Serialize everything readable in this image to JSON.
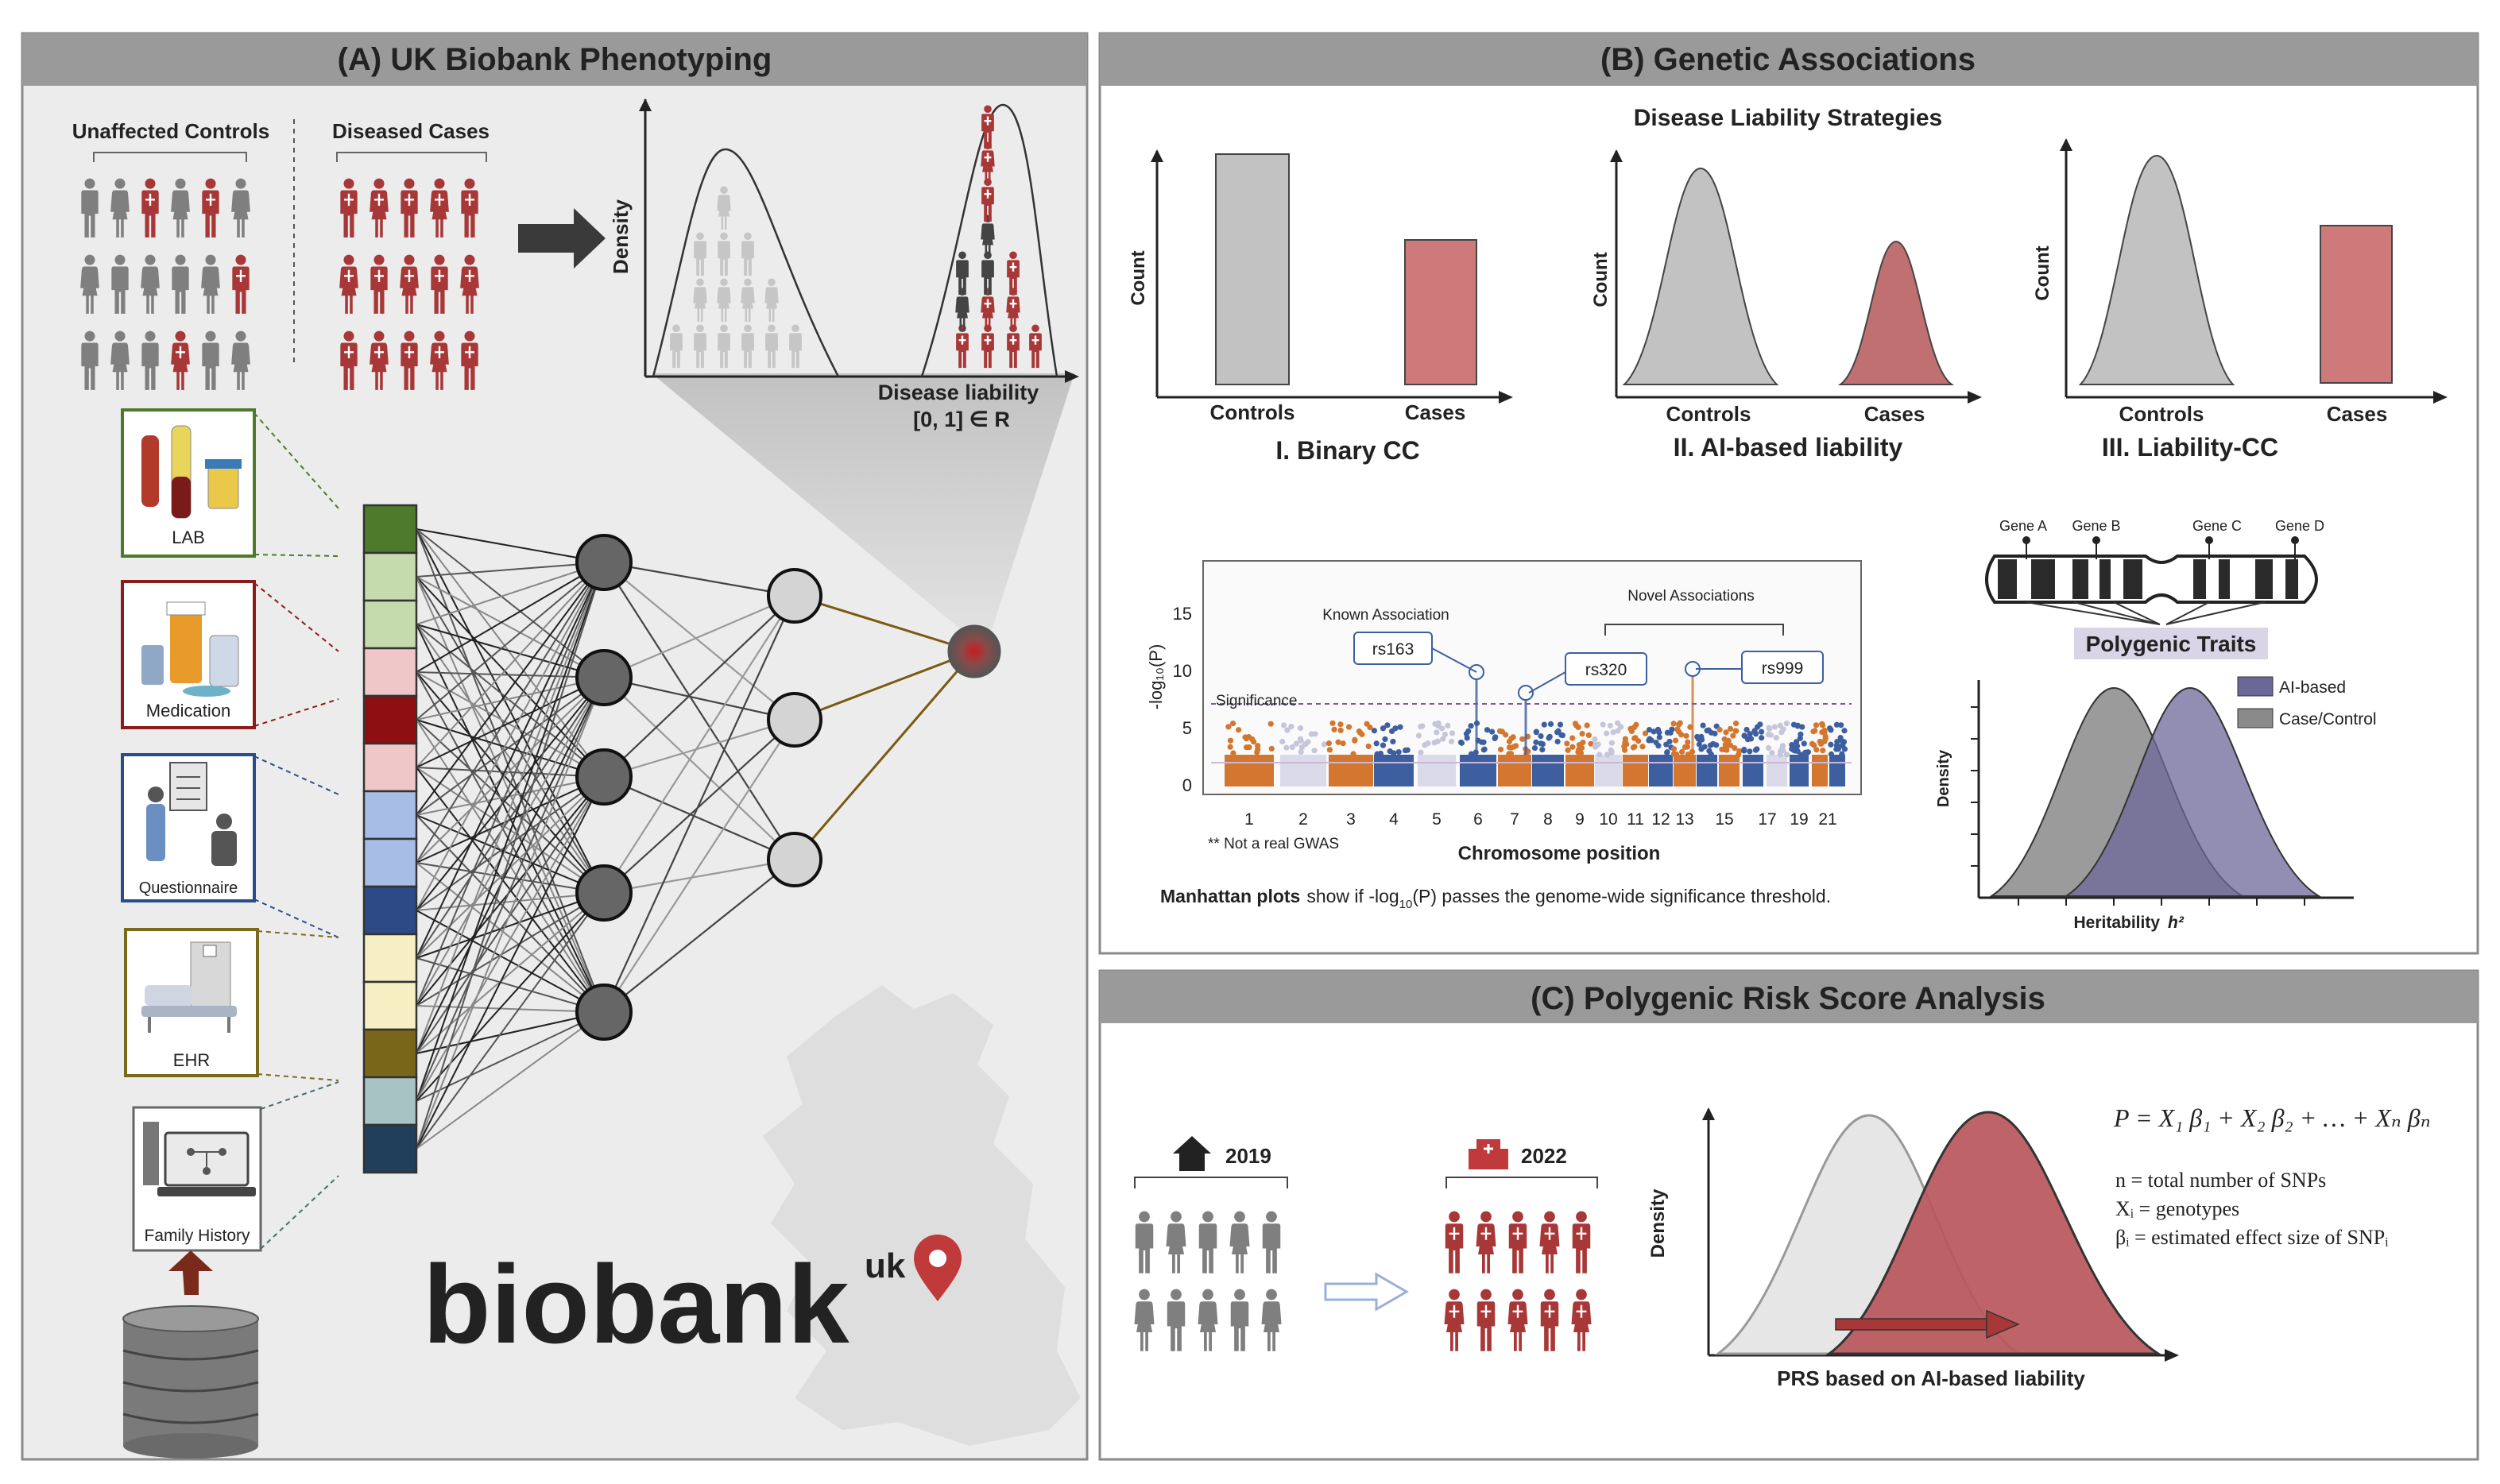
{
  "panel_a": {
    "title": "(A) UK Biobank Phenotyping",
    "controls_label": "Unaffected Controls",
    "cases_label": "Diseased Cases",
    "density_label": "Density",
    "liability_label": "Disease liability",
    "liability_range": "[0, 1] ∈ R",
    "sources": [
      "LAB",
      "Medication",
      "Questionnaire",
      "EHR",
      "Family History"
    ],
    "logo_text": "biobank",
    "logo_sup": "uk"
  },
  "panel_b": {
    "title": "(B) Genetic Associations",
    "subtitle": "Disease Liability Strategies",
    "count_label": "Count",
    "controls_label": "Controls",
    "cases_label": "Cases",
    "strategies": [
      "I. Binary CC",
      "II. AI-based liability",
      "III. Liability-CC"
    ],
    "manhattan": {
      "ylabel": "-log₁₀(P)",
      "yticks": [
        "15",
        "10",
        "5",
        "0"
      ],
      "xlabel": "Chromosome position",
      "xticks": [
        "1",
        "2",
        "3",
        "4",
        "5",
        "6",
        "7",
        "8",
        "9",
        "10",
        "11",
        "12",
        "13",
        "15",
        "17",
        "19",
        "21"
      ],
      "significance_label": "Significance",
      "known_label": "Known Association",
      "novel_label": "Novel Associations",
      "snps": [
        "rs163",
        "rs320",
        "rs999"
      ],
      "note": "** Not a real GWAS"
    },
    "caption_bold": "Manhattan plots",
    "caption_rest": "show if -log",
    "caption_sub": "10",
    "caption_end": "(P) passes the genome-wide significance threshold.",
    "genes": [
      "Gene A",
      "Gene B",
      "Gene C",
      "Gene D"
    ],
    "polygenic_label": "Polygenic Traits",
    "legend": [
      "AI-based",
      "Case/Control"
    ],
    "heritability_label": "Heritability",
    "h2_label": "h²",
    "density_label": "Density"
  },
  "panel_c": {
    "title": "(C) Polygenic Risk Score Analysis",
    "year_start": "2019",
    "year_end": "2022",
    "density_label": "Density",
    "prs_label": "PRS based on AI-based liability",
    "formula": "P = X₁ β₁ + X₂ β₂ + … + Xₙ βₙ",
    "def_n": "n = total number of SNPs",
    "def_x": "Xᵢ = genotypes",
    "def_b": "βᵢ = estimated effect size of SNPᵢ"
  },
  "colors": {
    "header_gray": "#9a9a9a",
    "panel_bg": "#ececec",
    "case_red": "#a83838",
    "control_gray": "#7f7f7f",
    "manhattan_orange": "#d3762f",
    "manhattan_blue": "#3d5fa0",
    "ai_purple": "#6c6799"
  }
}
